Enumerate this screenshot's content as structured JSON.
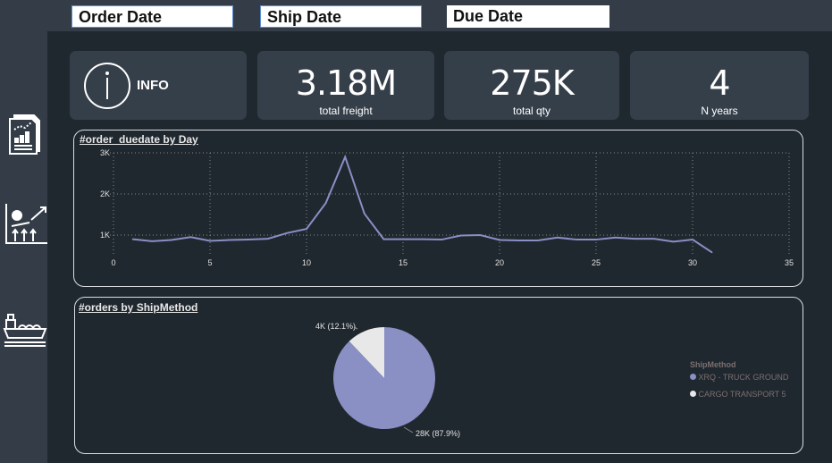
{
  "filters": {
    "order_date": "Order Date",
    "ship_date": "Ship Date",
    "due_date": "Due Date"
  },
  "sidebar": {
    "items": [
      {
        "icon": "report-chart-icon"
      },
      {
        "icon": "dollar-growth-icon"
      },
      {
        "icon": "cargo-ship-icon"
      }
    ]
  },
  "kpis": {
    "info": {
      "label": "INFO",
      "icon": "info-icon"
    },
    "freight": {
      "value": "3.18M",
      "label": "total freight"
    },
    "qty": {
      "value": "275K",
      "label": "total qty"
    },
    "years": {
      "value": "4",
      "label": "N years"
    }
  },
  "chart_data": [
    {
      "type": "line",
      "title": "#order_duedate by Day",
      "x": [
        1,
        2,
        3,
        4,
        5,
        6,
        7,
        8,
        9,
        10,
        11,
        12,
        13,
        14,
        15,
        16,
        17,
        18,
        19,
        20,
        21,
        22,
        23,
        24,
        25,
        26,
        27,
        28,
        29,
        30,
        31
      ],
      "values": [
        900,
        850,
        880,
        950,
        860,
        880,
        890,
        910,
        1050,
        1150,
        1780,
        2900,
        1520,
        900,
        900,
        900,
        890,
        990,
        1000,
        880,
        870,
        870,
        940,
        890,
        890,
        940,
        910,
        910,
        840,
        890,
        580
      ],
      "xlim": [
        0,
        35
      ],
      "ylim": [
        500,
        3000
      ],
      "xticks": [
        "0",
        "5",
        "10",
        "15",
        "20",
        "25",
        "30",
        "35"
      ],
      "yticks": [
        "1K",
        "2K",
        "3K"
      ],
      "grid": true,
      "color": "#8a8fc4"
    },
    {
      "type": "pie",
      "title": "#orders by ShipMethod",
      "legend_title": "ShipMethod",
      "legend_position": "right",
      "slices": [
        {
          "name": "XRQ - TRUCK GROUND",
          "value": 28000,
          "percent": 87.9,
          "label": "28K (87.9%)",
          "color": "#8a8fc4"
        },
        {
          "name": "CARGO TRANSPORT 5",
          "value": 4000,
          "percent": 12.1,
          "label": "4K (12.1%)",
          "color": "#e8e8e8"
        }
      ]
    }
  ]
}
